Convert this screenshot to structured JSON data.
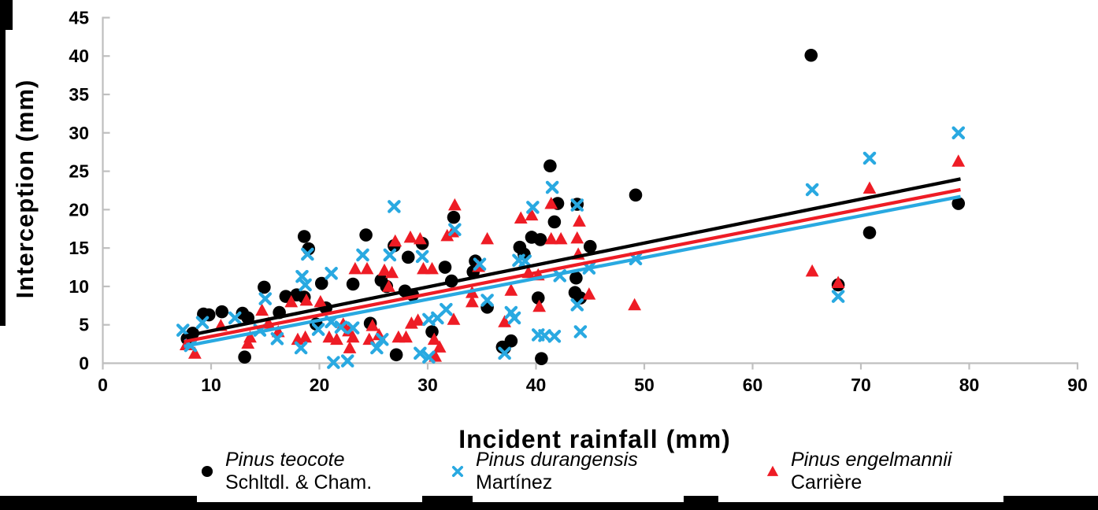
{
  "chart_data": {
    "type": "scatter",
    "title": "",
    "xlabel": "Incident rainfall (mm)",
    "ylabel": "Interception (mm)",
    "xlim": [
      0,
      90
    ],
    "ylim": [
      0,
      45
    ],
    "x_ticks": [
      0,
      10,
      20,
      30,
      40,
      50,
      60,
      70,
      80,
      90
    ],
    "y_ticks": [
      0,
      5,
      10,
      15,
      20,
      25,
      30,
      35,
      40,
      45
    ],
    "grid": false,
    "legend_position": "bottom",
    "axis_color": "#bfbfbf",
    "series": [
      {
        "id": "pinus-teocote",
        "name": "Pinus teocote",
        "author": "Schltdl. & Cham.",
        "marker": "circle",
        "color": "#000000",
        "trend": {
          "x1": 7.5,
          "y1": 3.5,
          "x2": 79.2,
          "y2": 24.0
        },
        "points": [
          [
            65.4,
            40.1
          ],
          [
            41.3,
            25.7
          ],
          [
            49.2,
            21.9
          ],
          [
            42.0,
            20.8
          ],
          [
            43.8,
            20.7
          ],
          [
            41.7,
            18.4
          ],
          [
            32.4,
            19.0
          ],
          [
            39.6,
            16.4
          ],
          [
            40.4,
            16.1
          ],
          [
            38.5,
            15.1
          ],
          [
            38.9,
            14.2
          ],
          [
            45.0,
            15.2
          ],
          [
            24.3,
            16.7
          ],
          [
            26.9,
            15.3
          ],
          [
            29.5,
            15.6
          ],
          [
            18.6,
            16.5
          ],
          [
            19.0,
            14.9
          ],
          [
            28.2,
            13.8
          ],
          [
            34.4,
            13.3
          ],
          [
            31.6,
            12.5
          ],
          [
            34.2,
            11.9
          ],
          [
            32.2,
            10.7
          ],
          [
            14.9,
            9.9
          ],
          [
            16.9,
            8.7
          ],
          [
            17.9,
            8.9
          ],
          [
            18.6,
            8.6
          ],
          [
            20.2,
            10.4
          ],
          [
            23.1,
            10.3
          ],
          [
            25.7,
            10.8
          ],
          [
            26.2,
            10.0
          ],
          [
            27.9,
            9.4
          ],
          [
            28.6,
            8.9
          ],
          [
            35.5,
            7.3
          ],
          [
            40.2,
            8.5
          ],
          [
            43.7,
            11.1
          ],
          [
            43.6,
            9.2
          ],
          [
            44.1,
            8.5
          ],
          [
            37.1,
            2.0
          ],
          [
            37.7,
            2.9
          ],
          [
            36.9,
            2.1
          ],
          [
            40.5,
            0.6
          ],
          [
            30.4,
            4.1
          ],
          [
            24.7,
            5.2
          ],
          [
            27.1,
            1.1
          ],
          [
            13.1,
            0.8
          ],
          [
            9.3,
            6.4
          ],
          [
            9.8,
            6.3
          ],
          [
            11.0,
            6.7
          ],
          [
            12.9,
            6.5
          ],
          [
            13.4,
            5.9
          ],
          [
            8.3,
            3.9
          ],
          [
            7.8,
            3.2
          ],
          [
            16.3,
            6.6
          ],
          [
            19.7,
            5.1
          ],
          [
            20.6,
            7.2
          ],
          [
            70.8,
            17.0
          ],
          [
            79.0,
            20.8
          ],
          [
            67.9,
            10.2
          ]
        ]
      },
      {
        "id": "pinus-durangensis",
        "name": "Pinus durangensis",
        "author": "Martínez",
        "marker": "x",
        "color": "#29a9e1",
        "trend": {
          "x1": 7.5,
          "y1": 2.2,
          "x2": 79.2,
          "y2": 21.7
        },
        "points": [
          [
            79.0,
            30.0
          ],
          [
            70.8,
            26.7
          ],
          [
            65.5,
            22.6
          ],
          [
            67.9,
            8.7
          ],
          [
            49.2,
            13.6
          ],
          [
            44.9,
            12.4
          ],
          [
            43.8,
            20.6
          ],
          [
            41.5,
            22.9
          ],
          [
            39.7,
            20.3
          ],
          [
            26.9,
            20.4
          ],
          [
            32.5,
            17.4
          ],
          [
            26.5,
            14.1
          ],
          [
            24.0,
            14.1
          ],
          [
            18.9,
            14.2
          ],
          [
            18.4,
            11.3
          ],
          [
            21.1,
            11.7
          ],
          [
            15.0,
            8.4
          ],
          [
            9.2,
            5.3
          ],
          [
            7.4,
            4.3
          ],
          [
            8.1,
            2.3
          ],
          [
            12.2,
            5.9
          ],
          [
            14.5,
            4.3
          ],
          [
            16.1,
            3.2
          ],
          [
            18.3,
            2.0
          ],
          [
            19.9,
            4.4
          ],
          [
            21.1,
            5.4
          ],
          [
            22.0,
            4.7
          ],
          [
            23.1,
            4.6
          ],
          [
            25.8,
            3.1
          ],
          [
            25.3,
            2.0
          ],
          [
            29.3,
            1.3
          ],
          [
            30.1,
            0.8
          ],
          [
            21.3,
            0.1
          ],
          [
            22.6,
            0.3
          ],
          [
            30.1,
            5.7
          ],
          [
            30.9,
            5.9
          ],
          [
            31.7,
            7.0
          ],
          [
            35.5,
            8.2
          ],
          [
            37.7,
            6.6
          ],
          [
            38.0,
            5.9
          ],
          [
            40.2,
            3.7
          ],
          [
            40.8,
            3.6
          ],
          [
            41.7,
            3.5
          ],
          [
            44.1,
            4.1
          ],
          [
            43.8,
            7.6
          ],
          [
            42.2,
            11.4
          ],
          [
            37.1,
            1.3
          ],
          [
            34.8,
            12.9
          ],
          [
            29.5,
            13.9
          ],
          [
            38.4,
            13.4
          ],
          [
            39.0,
            13.3
          ],
          [
            18.7,
            10.2
          ]
        ]
      },
      {
        "id": "pinus-engelmannii",
        "name": "Pinus engelmannii",
        "author": "Carrière",
        "marker": "triangle",
        "color": "#ee1c25",
        "trend": {
          "x1": 7.5,
          "y1": 2.8,
          "x2": 79.2,
          "y2": 22.6
        },
        "points": [
          [
            79.0,
            26.3
          ],
          [
            70.8,
            22.8
          ],
          [
            65.5,
            12.0
          ],
          [
            67.9,
            10.5
          ],
          [
            49.1,
            7.6
          ],
          [
            44.0,
            18.5
          ],
          [
            41.4,
            16.2
          ],
          [
            42.3,
            16.2
          ],
          [
            43.8,
            16.3
          ],
          [
            41.4,
            20.8
          ],
          [
            38.6,
            18.9
          ],
          [
            39.6,
            19.3
          ],
          [
            39.3,
            11.8
          ],
          [
            40.2,
            11.5
          ],
          [
            37.7,
            9.5
          ],
          [
            44.9,
            9.0
          ],
          [
            43.9,
            14.2
          ],
          [
            40.3,
            7.4
          ],
          [
            35.5,
            16.2
          ],
          [
            32.5,
            20.6
          ],
          [
            31.8,
            16.6
          ],
          [
            32.3,
            17.1
          ],
          [
            34.7,
            12.6
          ],
          [
            34.1,
            9.2
          ],
          [
            37.1,
            5.4
          ],
          [
            34.1,
            8.0
          ],
          [
            32.4,
            5.7
          ],
          [
            29.6,
            12.3
          ],
          [
            30.4,
            12.3
          ],
          [
            28.4,
            16.4
          ],
          [
            29.3,
            16.2
          ],
          [
            27.0,
            15.9
          ],
          [
            26.0,
            12.1
          ],
          [
            26.7,
            11.8
          ],
          [
            26.4,
            10.0
          ],
          [
            23.3,
            12.3
          ],
          [
            24.4,
            12.3
          ],
          [
            22.2,
            5.1
          ],
          [
            22.7,
            4.2
          ],
          [
            23.1,
            3.4
          ],
          [
            22.8,
            2.0
          ],
          [
            24.6,
            3.1
          ],
          [
            24.9,
            4.9
          ],
          [
            25.5,
            3.7
          ],
          [
            27.3,
            3.4
          ],
          [
            28.0,
            3.4
          ],
          [
            28.5,
            5.2
          ],
          [
            29.1,
            5.6
          ],
          [
            30.6,
            3.1
          ],
          [
            31.1,
            2.1
          ],
          [
            30.7,
            0.9
          ],
          [
            20.9,
            3.4
          ],
          [
            21.6,
            3.1
          ],
          [
            20.1,
            8.0
          ],
          [
            18.8,
            8.2
          ],
          [
            17.4,
            8.0
          ],
          [
            18.0,
            3.1
          ],
          [
            18.7,
            3.4
          ],
          [
            16.2,
            4.1
          ],
          [
            15.3,
            5.2
          ],
          [
            14.7,
            6.9
          ],
          [
            13.6,
            3.4
          ],
          [
            13.4,
            2.6
          ],
          [
            10.9,
            4.9
          ],
          [
            8.5,
            1.3
          ],
          [
            7.7,
            2.4
          ]
        ]
      }
    ]
  }
}
